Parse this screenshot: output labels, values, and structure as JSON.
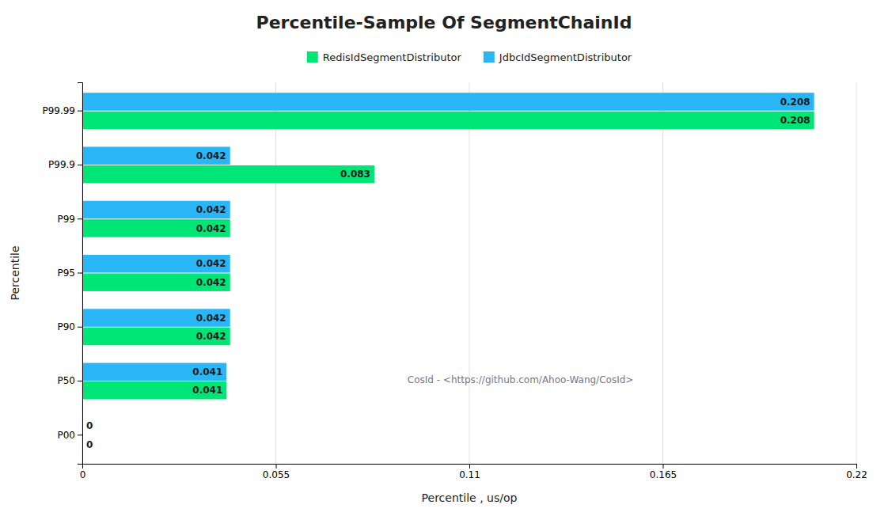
{
  "chart_data": {
    "type": "bar",
    "orientation": "horizontal",
    "title": "Percentile-Sample Of SegmentChainId",
    "xlabel": "Percentile , us/op",
    "ylabel": "Percentile",
    "annotation": "CosId - <https://github.com/Ahoo-Wang/CosId>",
    "categories": [
      "P99.99",
      "P99.9",
      "P99",
      "P95",
      "P90",
      "P50",
      "P00"
    ],
    "series": [
      {
        "name": "RedisIdSegmentDistributor",
        "color": "#00e676",
        "values": [
          0.208,
          0.083,
          0.042,
          0.042,
          0.042,
          0.041,
          0
        ]
      },
      {
        "name": "JdbcIdSegmentDistributor",
        "color": "#29b6f6",
        "values": [
          0.208,
          0.042,
          0.042,
          0.042,
          0.042,
          0.041,
          0
        ]
      }
    ],
    "xlim": [
      0,
      0.22
    ],
    "xticks": [
      0,
      0.055,
      0.11,
      0.165,
      0.22
    ],
    "grid": true,
    "legend": "top",
    "data_labels": true
  }
}
